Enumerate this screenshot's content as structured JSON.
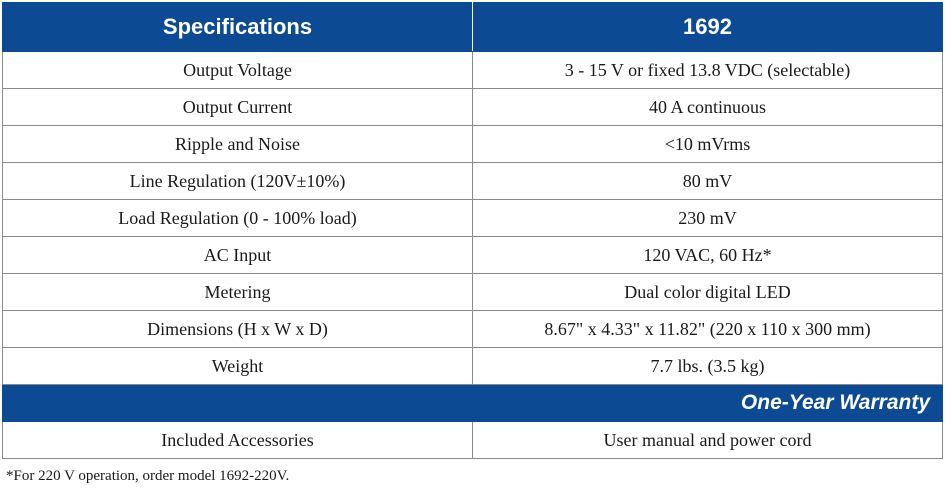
{
  "header": {
    "col1": "Specifications",
    "col2": "1692"
  },
  "rows": [
    {
      "label": "Output Voltage",
      "value": "3 - 15 V or fixed 13.8 VDC (selectable)"
    },
    {
      "label": "Output Current",
      "value": "40 A continuous"
    },
    {
      "label": "Ripple and Noise",
      "value": "<10 mVrms"
    },
    {
      "label": "Line Regulation (120V±10%)",
      "value": "80 mV"
    },
    {
      "label": "Load Regulation (0 - 100% load)",
      "value": "230 mV"
    },
    {
      "label": "AC Input",
      "value": "120 VAC, 60 Hz*"
    },
    {
      "label": "Metering",
      "value": "Dual color digital LED"
    },
    {
      "label": "Dimensions (H x W x D)",
      "value": "8.67\" x 4.33\" x 11.82\" (220 x 110 x 300 mm)"
    },
    {
      "label": "Weight",
      "value": "7.7 lbs. (3.5 kg)"
    }
  ],
  "warranty": "One-Year Warranty",
  "accessories": {
    "label": "Included Accessories",
    "value": "User manual and power cord"
  },
  "footnote": "*For 220 V operation, order model 1692-220V.",
  "colors": {
    "header_bg": "#0d4a94",
    "header_text": "#ffffff"
  }
}
